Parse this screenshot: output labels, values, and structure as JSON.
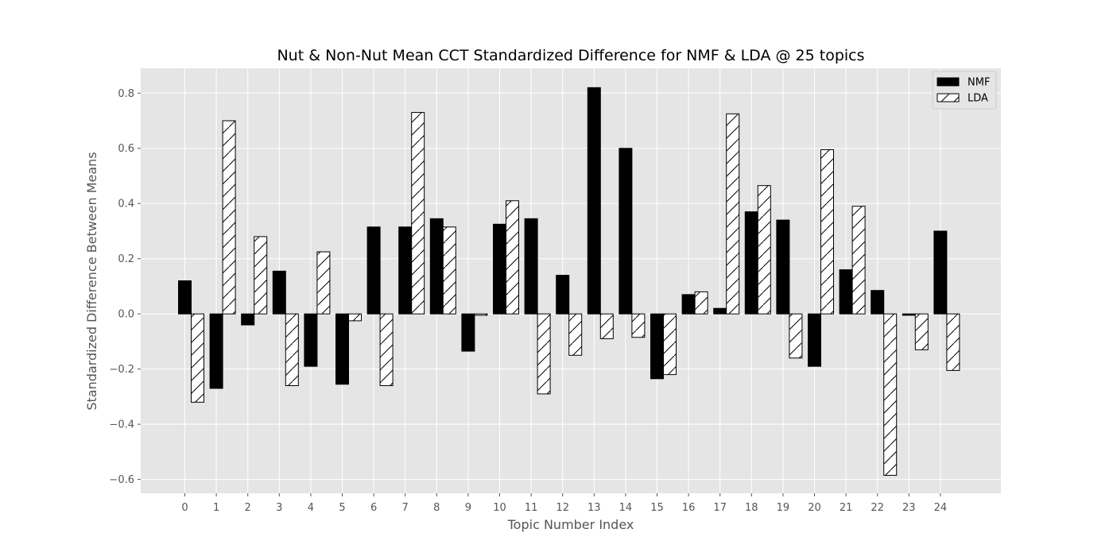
{
  "chart_data": {
    "type": "bar",
    "title": "Nut & Non-Nut Mean CCT Standardized Difference for NMF & LDA @ 25 topics",
    "xlabel": "Topic Number Index",
    "ylabel": "Standardized Difference Between Means",
    "categories": [
      "0",
      "1",
      "2",
      "3",
      "4",
      "5",
      "6",
      "7",
      "8",
      "9",
      "10",
      "11",
      "12",
      "13",
      "14",
      "15",
      "16",
      "17",
      "18",
      "19",
      "20",
      "21",
      "22",
      "23",
      "24"
    ],
    "ylim": [
      -0.65,
      0.89
    ],
    "yticks": [
      -0.6,
      -0.4,
      -0.2,
      0.0,
      0.2,
      0.4,
      0.6,
      0.8
    ],
    "ytick_labels": [
      "−0.6",
      "−0.4",
      "−0.2",
      "0.0",
      "0.2",
      "0.4",
      "0.6",
      "0.8"
    ],
    "grid": true,
    "legend_position": "top-right",
    "series": [
      {
        "name": "NMF",
        "fill": "#000000",
        "hatch": false,
        "values": [
          0.12,
          -0.27,
          -0.04,
          0.155,
          -0.19,
          -0.255,
          0.315,
          0.315,
          0.345,
          -0.135,
          0.325,
          0.345,
          0.14,
          0.82,
          0.6,
          -0.235,
          0.07,
          0.02,
          0.37,
          0.34,
          -0.19,
          0.16,
          0.085,
          -0.005,
          0.3
        ]
      },
      {
        "name": "LDA",
        "fill": "#ffffff",
        "hatch": true,
        "values": [
          -0.32,
          0.7,
          0.28,
          -0.26,
          0.225,
          -0.025,
          -0.26,
          0.73,
          0.315,
          -0.005,
          0.41,
          -0.29,
          -0.15,
          -0.09,
          -0.085,
          -0.22,
          0.08,
          0.725,
          0.465,
          -0.16,
          0.595,
          0.39,
          -0.585,
          -0.13,
          -0.205
        ]
      }
    ],
    "colors": {
      "plot_background": "#e5e5e5",
      "grid": "#ffffff",
      "bar_edge": "#000000",
      "legend_background": "#e5e5e5",
      "legend_border": "#cccccc"
    }
  }
}
